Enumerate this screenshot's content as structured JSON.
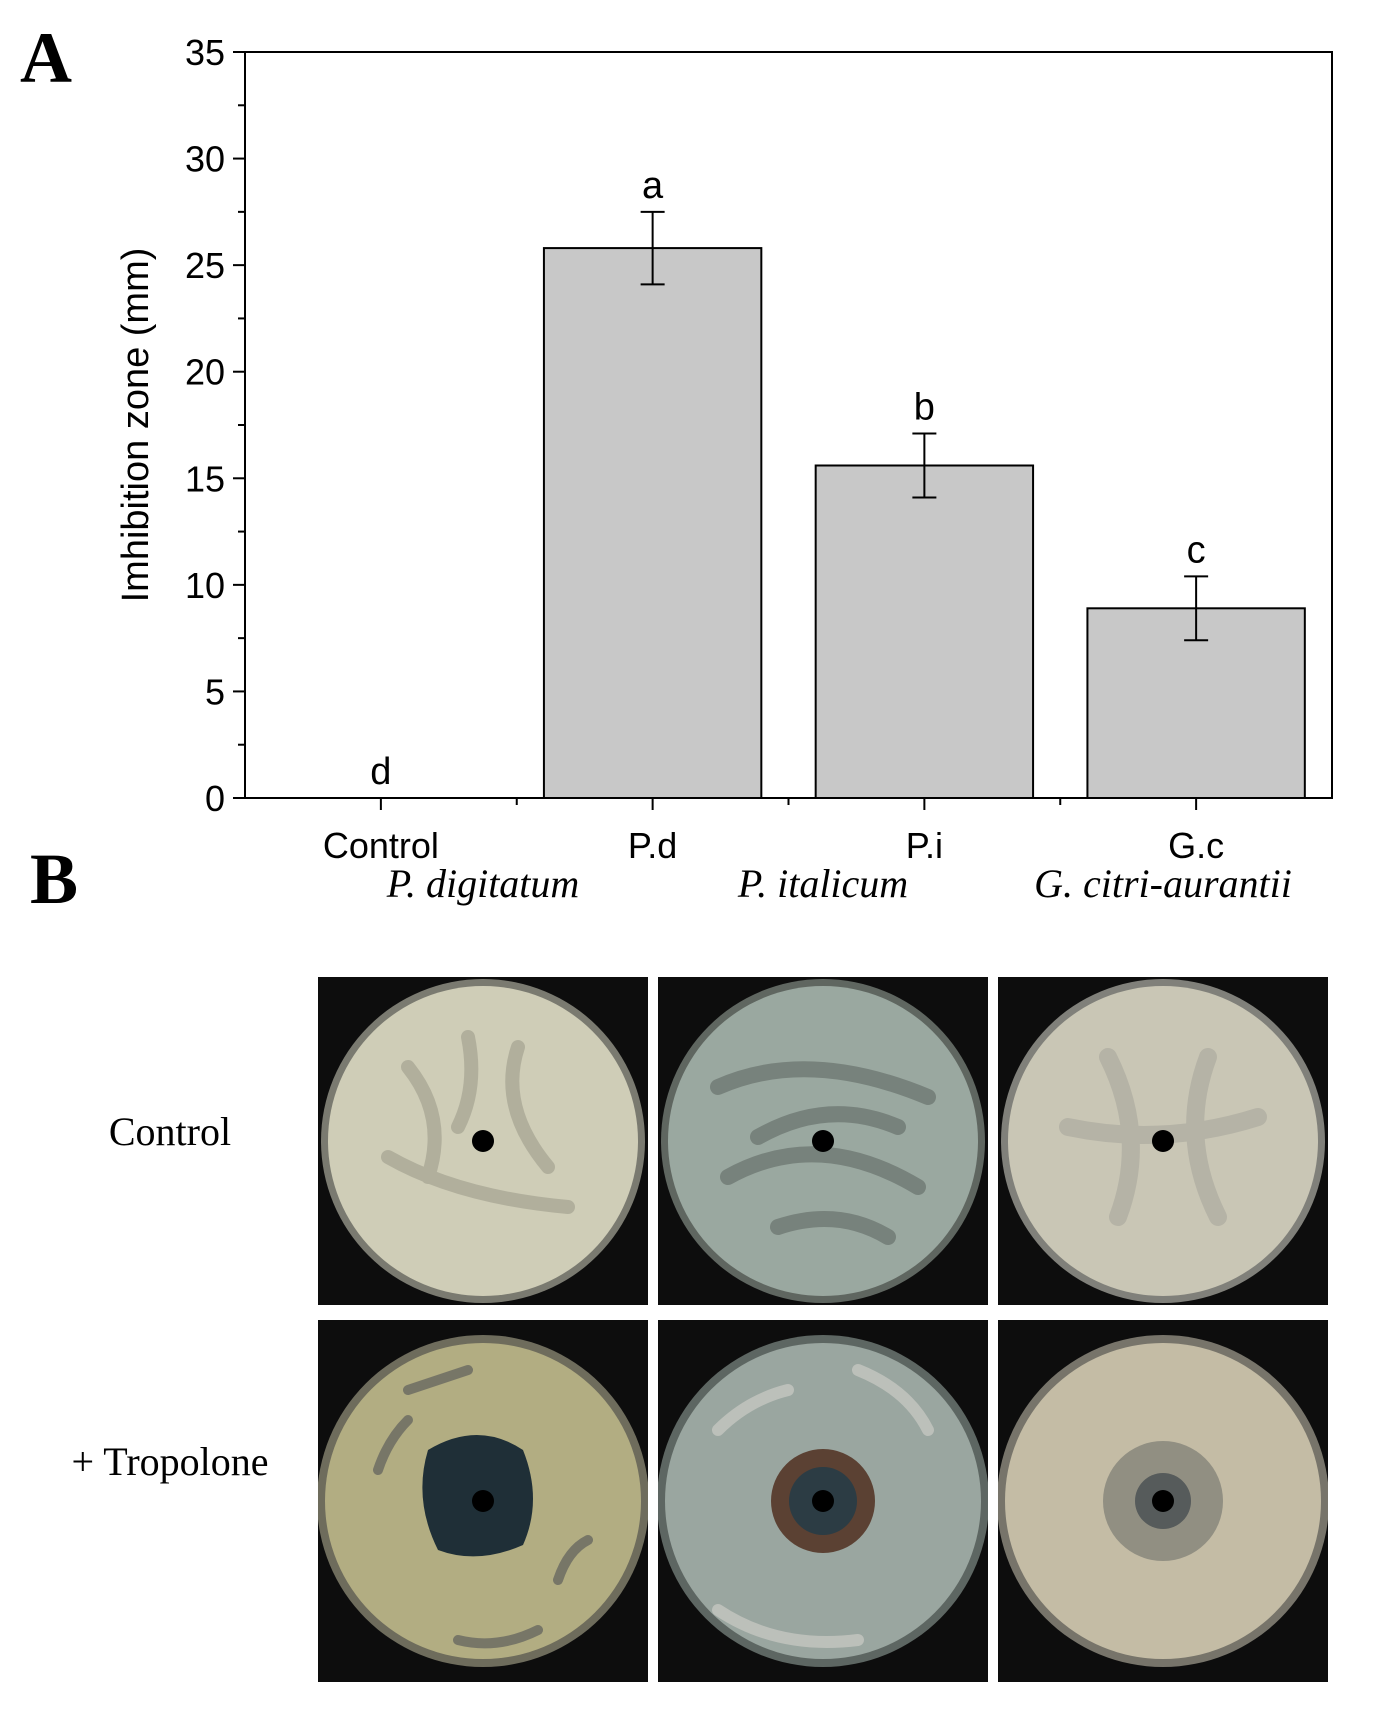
{
  "panel_a_label": "A",
  "panel_b_label": "B",
  "chart_data": {
    "type": "bar",
    "title": "",
    "xlabel": "",
    "ylabel": "Imhibition zone (mm)",
    "ylim": [
      0,
      35
    ],
    "yticks": [
      0,
      5,
      10,
      15,
      20,
      25,
      30,
      35
    ],
    "categories": [
      "Control",
      "P.d",
      "P.i",
      "G.c"
    ],
    "values": [
      0,
      25.8,
      15.6,
      8.9
    ],
    "errors": [
      0,
      1.7,
      1.5,
      1.5
    ],
    "significance_letters": [
      "d",
      "a",
      "b",
      "c"
    ],
    "bar_color": "#c8c8c8",
    "grid": false,
    "legend": "none"
  },
  "panel_b": {
    "species": [
      "P. digitatum",
      "P. italicum",
      "G. citri-aurantii"
    ],
    "rows": [
      "Control",
      "+ Tropolone"
    ],
    "plate_colors": {
      "p_digitatum_control": "#cfcdb7",
      "p_italicum_control": "#9aa8a0",
      "g_citri_control": "#c9c6b5",
      "p_digitatum_tropolone": "#b2ad82",
      "p_italicum_tropolone": "#9aa6a0",
      "g_citri_tropolone": "#c4bca5"
    }
  }
}
